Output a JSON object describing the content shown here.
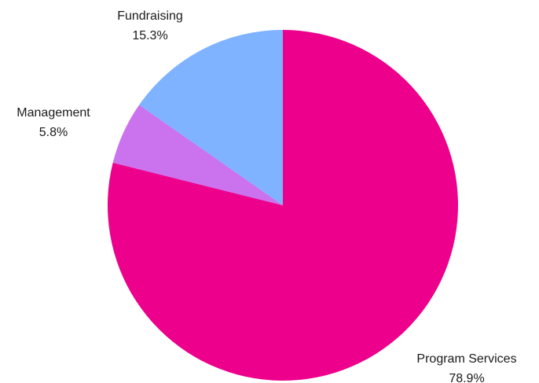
{
  "chart_data": {
    "type": "pie",
    "title": "",
    "slices": [
      {
        "label": "Program Services",
        "value": 78.9,
        "value_label": "78.9%",
        "color": "#EC008C"
      },
      {
        "label": "Management",
        "value": 5.8,
        "value_label": "5.8%",
        "color": "#CB72EE"
      },
      {
        "label": "Fundraising",
        "value": 15.3,
        "value_label": "15.3%",
        "color": "#7FB2FF"
      }
    ],
    "start": "12 o'clock",
    "direction": "clockwise",
    "legend": "none",
    "labels": "outside"
  }
}
